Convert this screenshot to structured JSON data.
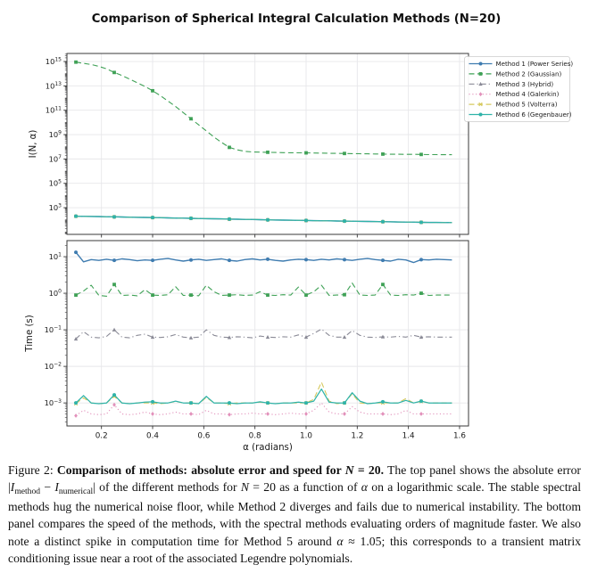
{
  "figure": {
    "title": "Comparison of Spherical Integral Calculation Methods (N=20)",
    "xlabel": "α (radians)",
    "caption_segments": [
      {
        "s": "n",
        "t": "Figure 2: "
      },
      {
        "s": "b",
        "t": "Comparison of methods: absolute error and speed for "
      },
      {
        "s": "bi",
        "t": "N"
      },
      {
        "s": "b",
        "t": " = 20."
      },
      {
        "s": "n",
        "t": " The top panel shows the absolute error |"
      },
      {
        "s": "i",
        "t": "I"
      },
      {
        "s": "sub",
        "t": "method"
      },
      {
        "s": "n",
        "t": " − "
      },
      {
        "s": "i",
        "t": "I"
      },
      {
        "s": "sub",
        "t": "numerical"
      },
      {
        "s": "n",
        "t": "| of the different methods for "
      },
      {
        "s": "i",
        "t": "N"
      },
      {
        "s": "n",
        "t": " = 20 as a function of "
      },
      {
        "s": "i",
        "t": "α"
      },
      {
        "s": "n",
        "t": " on a logarithmic scale. The stable spectral methods hug the numerical noise floor, while Method 2 diverges and fails due to numerical instability. The bottom panel compares the speed of the methods, with the spectral methods evaluating orders of magnitude faster. We also note a distinct spike in computation time for Method 5 around "
      },
      {
        "s": "i",
        "t": "α"
      },
      {
        "s": "n",
        "t": " ≈ 1.05; this corresponds to a transient matrix conditioning issue near a root of the associated Legendre polynomials."
      }
    ]
  },
  "methods": [
    {
      "id": 1,
      "label": "Method 1 (Power Series)",
      "color": "#3f7cb0",
      "dash": "solid",
      "marker": "circle"
    },
    {
      "id": 2,
      "label": "Method 2 (Gaussian)",
      "color": "#3fa156",
      "dash": "dashed",
      "marker": "square"
    },
    {
      "id": 3,
      "label": "Method 3 (Hybrid)",
      "color": "#8a8a96",
      "dash": "dashdot",
      "marker": "triangle"
    },
    {
      "id": 4,
      "label": "Method 4 (Galerkin)",
      "color": "#e291bb",
      "dash": "dotted",
      "marker": "diamond"
    },
    {
      "id": 5,
      "label": "Method 5 (Volterra)",
      "color": "#d6c95e",
      "dash": "dashed",
      "marker": "x"
    },
    {
      "id": 6,
      "label": "Method 6 (Gegenbauer)",
      "color": "#2fb3a9",
      "dash": "solid",
      "marker": "circle"
    }
  ],
  "chart_data": [
    {
      "type": "line",
      "panel": "absolute-error",
      "ylabel": "I(N, α)",
      "yscale": "log",
      "ylim_log10": [
        0.81,
        15.66
      ],
      "ytick_exponents": [
        3,
        5,
        7,
        9,
        11,
        13,
        15
      ],
      "xlim": [
        0.065,
        1.635
      ],
      "xticks": [
        0.2,
        0.4,
        0.6,
        0.8,
        1.0,
        1.2,
        1.4,
        1.6
      ],
      "xtick_labels_visible": false,
      "x_start": 0.1,
      "x_step": 0.03,
      "n_points": 50,
      "marker_every": 5,
      "legend_visible": true,
      "stable_error_log10": [
        2.3,
        2.29,
        2.28,
        2.27,
        2.26,
        2.25,
        2.24,
        2.22,
        2.21,
        2.2,
        2.19,
        2.18,
        2.16,
        2.15,
        2.14,
        2.13,
        2.11,
        2.1,
        2.09,
        2.08,
        2.06,
        2.05,
        2.04,
        2.03,
        2.02,
        2.0,
        1.99,
        1.98,
        1.97,
        1.96,
        1.95,
        1.94,
        1.93,
        1.92,
        1.91,
        1.9,
        1.89,
        1.88,
        1.87,
        1.86,
        1.85,
        1.84,
        1.83,
        1.82,
        1.81,
        1.8,
        1.79,
        1.79,
        1.78,
        1.78
      ],
      "series": [
        {
          "method": 1,
          "values_ref": "stable_error_log10"
        },
        {
          "method": 3,
          "values_ref": "stable_error_log10"
        },
        {
          "method": 4,
          "values_ref": "stable_error_log10"
        },
        {
          "method": 5,
          "values_ref": "stable_error_log10"
        },
        {
          "method": 6,
          "values_ref": "stable_error_log10"
        },
        {
          "method": 2,
          "log10_values": [
            14.95,
            14.85,
            14.75,
            14.6,
            14.4,
            14.1,
            13.85,
            13.55,
            13.25,
            12.95,
            12.6,
            12.2,
            11.75,
            11.3,
            10.8,
            10.3,
            9.8,
            9.3,
            8.8,
            8.35,
            7.95,
            7.75,
            7.63,
            7.58,
            7.56,
            7.55,
            7.53,
            7.52,
            7.51,
            7.5,
            7.5,
            7.49,
            7.48,
            7.47,
            7.46,
            7.45,
            7.44,
            7.43,
            7.42,
            7.41,
            7.4,
            7.39,
            7.39,
            7.38,
            7.38,
            7.37,
            7.36,
            7.36,
            7.35,
            7.35
          ]
        }
      ]
    },
    {
      "type": "line",
      "panel": "time",
      "ylabel": "Time (s)",
      "yscale": "log",
      "ylim_log10": [
        -3.63,
        1.44
      ],
      "ytick_exponents": [
        -3,
        -2,
        -1,
        0,
        1
      ],
      "xlim": [
        0.065,
        1.635
      ],
      "xticks": [
        0.2,
        0.4,
        0.6,
        0.8,
        1.0,
        1.2,
        1.4,
        1.6
      ],
      "xtick_labels_visible": true,
      "x_start": 0.1,
      "x_step": 0.03,
      "n_points": 50,
      "marker_every": 5,
      "legend_visible": false,
      "series": [
        {
          "method": 1,
          "log10_values": [
            1.12,
            0.86,
            0.92,
            0.9,
            0.93,
            0.9,
            0.94,
            0.92,
            0.89,
            0.91,
            0.9,
            0.93,
            0.95,
            0.91,
            0.88,
            0.91,
            0.93,
            0.9,
            0.92,
            0.94,
            0.9,
            0.88,
            0.92,
            0.94,
            0.91,
            0.93,
            0.9,
            0.88,
            0.91,
            0.93,
            0.92,
            0.9,
            0.93,
            0.91,
            0.94,
            0.92,
            0.9,
            0.93,
            0.95,
            0.92,
            0.9,
            0.88,
            0.93,
            0.91,
            0.84,
            0.92,
            0.91,
            0.93,
            0.92,
            0.91
          ]
        },
        {
          "method": 2,
          "log10_values": [
            -0.05,
            0.06,
            0.22,
            -0.06,
            -0.08,
            0.24,
            -0.06,
            -0.05,
            -0.07,
            0.1,
            -0.05,
            -0.06,
            -0.04,
            0.18,
            -0.06,
            -0.05,
            -0.07,
            0.22,
            0.04,
            -0.06,
            -0.05,
            -0.04,
            -0.06,
            -0.05,
            0.04,
            -0.05,
            -0.06,
            -0.04,
            -0.05,
            0.17,
            -0.05,
            0.04,
            0.22,
            -0.06,
            -0.05,
            -0.04,
            0.28,
            -0.05,
            -0.06,
            -0.05,
            0.24,
            -0.05,
            -0.06,
            -0.04,
            -0.05,
            0.0,
            -0.06,
            -0.05,
            -0.05,
            -0.05
          ]
        },
        {
          "method": 3,
          "log10_values": [
            -1.25,
            -1.05,
            -1.2,
            -1.22,
            -1.18,
            -1.0,
            -1.2,
            -1.22,
            -1.15,
            -1.12,
            -1.2,
            -1.21,
            -1.19,
            -1.13,
            -1.2,
            -1.22,
            -1.2,
            -1.0,
            -1.15,
            -1.2,
            -1.21,
            -1.19,
            -1.2,
            -1.22,
            -1.17,
            -1.2,
            -1.21,
            -1.19,
            -1.2,
            -1.14,
            -1.2,
            -1.1,
            -0.98,
            -1.15,
            -1.2,
            -1.2,
            -1.02,
            -1.15,
            -1.2,
            -1.21,
            -1.19,
            -1.2,
            -1.18,
            -1.2,
            -1.15,
            -1.2,
            -1.19,
            -1.2,
            -1.2,
            -1.2
          ]
        },
        {
          "method": 4,
          "log10_values": [
            -3.35,
            -3.2,
            -3.3,
            -3.32,
            -3.3,
            -3.05,
            -3.3,
            -3.32,
            -3.3,
            -3.25,
            -3.3,
            -3.32,
            -3.3,
            -3.25,
            -3.3,
            -3.3,
            -3.32,
            -3.2,
            -3.3,
            -3.3,
            -3.32,
            -3.3,
            -3.3,
            -3.28,
            -3.3,
            -3.3,
            -3.32,
            -3.3,
            -3.28,
            -3.3,
            -3.3,
            -3.2,
            -3.0,
            -3.25,
            -3.3,
            -3.3,
            -3.1,
            -3.25,
            -3.3,
            -3.3,
            -3.3,
            -3.32,
            -3.3,
            -3.2,
            -3.3,
            -3.3,
            -3.3,
            -3.3,
            -3.3,
            -3.3
          ]
        },
        {
          "method": 5,
          "log10_values": [
            -3.02,
            -2.86,
            -3.0,
            -3.02,
            -3.0,
            -2.82,
            -3.0,
            -3.02,
            -3.0,
            -3.0,
            -3.0,
            -3.02,
            -3.0,
            -2.96,
            -3.0,
            -3.0,
            -3.02,
            -2.85,
            -3.0,
            -3.0,
            -3.02,
            -3.0,
            -3.0,
            -3.0,
            -2.98,
            -3.0,
            -3.02,
            -3.0,
            -3.0,
            -3.0,
            -3.0,
            -2.9,
            -2.43,
            -2.95,
            -3.02,
            -3.0,
            -2.75,
            -3.0,
            -3.02,
            -3.0,
            -3.0,
            -3.0,
            -3.0,
            -2.88,
            -3.0,
            -2.96,
            -3.0,
            -3.0,
            -3.0,
            -3.0
          ]
        },
        {
          "method": 6,
          "log10_values": [
            -3.0,
            -2.8,
            -3.0,
            -3.02,
            -3.0,
            -2.78,
            -3.0,
            -3.02,
            -3.0,
            -2.98,
            -2.97,
            -3.0,
            -3.0,
            -2.95,
            -3.0,
            -3.0,
            -3.02,
            -2.82,
            -3.0,
            -3.0,
            -3.0,
            -3.02,
            -3.0,
            -3.0,
            -2.97,
            -3.0,
            -3.02,
            -3.0,
            -3.0,
            -2.98,
            -3.0,
            -2.95,
            -2.62,
            -2.98,
            -3.0,
            -3.0,
            -2.72,
            -2.95,
            -3.02,
            -3.0,
            -2.97,
            -3.0,
            -3.0,
            -2.93,
            -3.0,
            -2.95,
            -3.0,
            -3.0,
            -3.0,
            -3.0
          ]
        }
      ]
    }
  ]
}
